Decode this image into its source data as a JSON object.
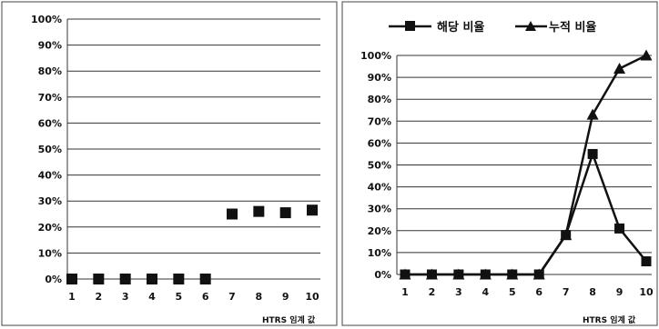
{
  "chart_data": [
    {
      "type": "scatter",
      "title": "",
      "xlabel": "HTRS 임계 값",
      "ylabel": "",
      "ylim": [
        0,
        100
      ],
      "y_ticks": [
        "0%",
        "10%",
        "20%",
        "30%",
        "40%",
        "50%",
        "60%",
        "70%",
        "80%",
        "90%",
        "100%"
      ],
      "x": [
        1,
        2,
        3,
        4,
        5,
        6,
        7,
        8,
        9,
        10
      ],
      "x_ticks": [
        "1",
        "2",
        "3",
        "4",
        "5",
        "6",
        "7",
        "8",
        "9",
        "10"
      ],
      "series": [
        {
          "values": [
            0,
            0,
            0,
            0,
            0,
            0,
            25,
            26,
            25.5,
            26.5
          ],
          "marker": "square",
          "color": "#111111"
        }
      ],
      "grid": true
    },
    {
      "type": "line",
      "title": "",
      "xlabel": "HTRS 임계 값",
      "ylabel": "",
      "ylim": [
        0,
        100
      ],
      "y_ticks": [
        "0%",
        "10%",
        "20%",
        "30%",
        "40%",
        "50%",
        "60%",
        "70%",
        "80%",
        "90%",
        "100%"
      ],
      "x": [
        1,
        2,
        3,
        4,
        5,
        6,
        7,
        8,
        9,
        10
      ],
      "x_ticks": [
        "1",
        "2",
        "3",
        "4",
        "5",
        "6",
        "7",
        "8",
        "9",
        "10"
      ],
      "series": [
        {
          "name": "해당 비율",
          "marker": "square",
          "color": "#111111",
          "values": [
            0,
            0,
            0,
            0,
            0,
            0,
            18,
            55,
            21,
            6
          ]
        },
        {
          "name": "누적 비율",
          "marker": "triangle",
          "color": "#111111",
          "values": [
            0,
            0,
            0,
            0,
            0,
            0,
            18,
            73,
            94,
            100
          ]
        }
      ],
      "legend": "top",
      "grid": true
    }
  ]
}
